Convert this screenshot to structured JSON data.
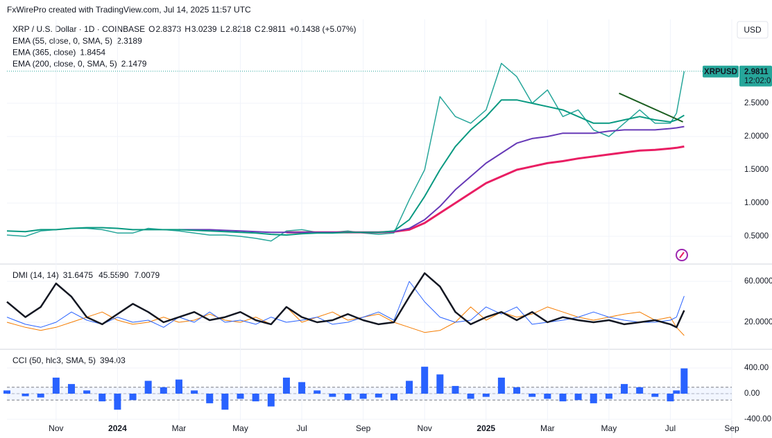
{
  "header": {
    "credit": "FxWirePro created with TradingView.com, Jul 14, 2025 11:57 UTC",
    "symbol": "XRP / U.S. Dollar · 1D · COINBASE",
    "ohlc": [
      {
        "key": "O",
        "value": "2.8373"
      },
      {
        "key": "H",
        "value": "3.0239"
      },
      {
        "key": "L",
        "value": "2.8218"
      },
      {
        "key": "C",
        "value": "2.9811"
      }
    ],
    "change": "+0.1438 (+5.07%)",
    "currency": "USD",
    "ticker": "XRPUSD",
    "last_price": "2.9811",
    "countdown": "12:02:0"
  },
  "chart_data": [
    {
      "type": "line",
      "studies": [
        {
          "label": "EMA (55, close, 0, SMA, 5)",
          "value": "2.3189",
          "color": "#089981"
        },
        {
          "label": "EMA (365, close)",
          "value": "1.8454",
          "color": "#e91e63"
        },
        {
          "label": "EMA (200, close, 0, SMA, 5)",
          "value": "2.1479",
          "color": "#673ab7"
        }
      ],
      "last": 2.9811,
      "x": [
        -1.6,
        -1,
        -0.5,
        0,
        0.5,
        1,
        1.5,
        2,
        2.5,
        3,
        3.5,
        4,
        4.5,
        5,
        5.5,
        6,
        6.5,
        7,
        7.5,
        8,
        8.5,
        9,
        9.5,
        10,
        10.5,
        11,
        11.5,
        12,
        12.5,
        13,
        13.5,
        14,
        14.5,
        15,
        15.5,
        16,
        16.5,
        17,
        17.5,
        18,
        18.5,
        19,
        19.5,
        20,
        20.2,
        20.45
      ],
      "xlim": [
        -1.6,
        22
      ],
      "xticks": [
        {
          "value": 0,
          "label": "Nov"
        },
        {
          "value": 2,
          "label": "2024"
        },
        {
          "value": 4,
          "label": "Mar"
        },
        {
          "value": 6,
          "label": "May"
        },
        {
          "value": 8,
          "label": "Jul"
        },
        {
          "value": 10,
          "label": "Sep"
        },
        {
          "value": 12,
          "label": "Nov"
        },
        {
          "value": 14,
          "label": "2025"
        },
        {
          "value": 16,
          "label": "Mar"
        },
        {
          "value": 18,
          "label": "May"
        },
        {
          "value": 20,
          "label": "Jul"
        },
        {
          "value": 22,
          "label": "Sep"
        }
      ],
      "ylim": [
        0.094,
        3.76
      ],
      "yticks": [
        {
          "value": 0.5,
          "label": "0.5000"
        },
        {
          "value": 1,
          "label": "1.0000"
        },
        {
          "value": 1.5,
          "label": "1.5000"
        },
        {
          "value": 2,
          "label": "2.0000"
        },
        {
          "value": 2.5,
          "label": "2.5000"
        }
      ],
      "series": [
        {
          "color": "#26a69a",
          "values": [
            0.52,
            0.5,
            0.58,
            0.6,
            0.62,
            0.62,
            0.6,
            0.55,
            0.55,
            0.62,
            0.6,
            0.58,
            0.55,
            0.52,
            0.52,
            0.5,
            0.47,
            0.43,
            0.58,
            0.6,
            0.56,
            0.56,
            0.58,
            0.55,
            0.53,
            0.55,
            1.05,
            1.5,
            2.6,
            2.3,
            2.2,
            2.4,
            3.1,
            2.9,
            2.5,
            2.7,
            2.3,
            2.4,
            2.1,
            2.0,
            2.2,
            2.4,
            2.2,
            2.2,
            2.35,
            2.98
          ]
        },
        {
          "color": "#e91e63",
          "width": 3,
          "values": [
            null,
            null,
            null,
            null,
            null,
            null,
            null,
            null,
            null,
            null,
            null,
            null,
            null,
            null,
            null,
            null,
            null,
            null,
            0.56,
            0.56,
            0.56,
            0.56,
            0.56,
            0.56,
            0.56,
            0.57,
            0.6,
            0.7,
            0.85,
            1.0,
            1.15,
            1.3,
            1.4,
            1.5,
            1.55,
            1.6,
            1.63,
            1.67,
            1.7,
            1.73,
            1.76,
            1.79,
            1.8,
            1.82,
            1.83,
            1.85
          ]
        },
        {
          "color": "#673ab7",
          "width": 2,
          "values": [
            null,
            null,
            null,
            null,
            null,
            null,
            null,
            null,
            null,
            null,
            null,
            0.6,
            0.6,
            0.6,
            0.59,
            0.58,
            0.57,
            0.56,
            0.56,
            0.56,
            0.56,
            0.56,
            0.56,
            0.56,
            0.56,
            0.57,
            0.62,
            0.75,
            0.95,
            1.2,
            1.4,
            1.6,
            1.75,
            1.9,
            1.97,
            2.0,
            2.05,
            2.05,
            2.05,
            2.08,
            2.1,
            2.1,
            2.1,
            2.12,
            2.13,
            2.15
          ]
        },
        {
          "color": "#089981",
          "width": 2,
          "values": [
            0.58,
            0.57,
            0.6,
            0.6,
            0.62,
            0.63,
            0.63,
            0.62,
            0.6,
            0.6,
            0.6,
            0.6,
            0.59,
            0.58,
            0.57,
            0.56,
            0.55,
            0.53,
            0.52,
            0.54,
            0.55,
            0.55,
            0.56,
            0.56,
            0.56,
            0.58,
            0.75,
            1.1,
            1.5,
            1.85,
            2.1,
            2.3,
            2.55,
            2.55,
            2.5,
            2.45,
            2.4,
            2.3,
            2.2,
            2.2,
            2.25,
            2.3,
            2.25,
            2.22,
            2.25,
            2.32
          ]
        }
      ],
      "trendline": {
        "x": [
          18.33,
          20.41
        ],
        "y": [
          2.65,
          2.22
        ],
        "color": "#1b5e20"
      }
    },
    {
      "type": "line",
      "title": "DMI (14, 14)",
      "readouts": [
        {
          "value": "31.6475",
          "color": "#131722"
        },
        {
          "value": "45.5590",
          "color": "#2962ff"
        },
        {
          "value": "7.0079",
          "color": "#f57c00"
        }
      ],
      "ylim": [
        -5.8,
        76.3
      ],
      "yticks": [
        {
          "value": 20,
          "label": "20.0000"
        },
        {
          "value": 60,
          "label": "60.0000"
        }
      ],
      "series": [
        {
          "color": "#f57c00",
          "width": 1,
          "values": [
            20,
            15,
            12,
            15,
            20,
            25,
            30,
            22,
            18,
            20,
            25,
            20,
            22,
            28,
            22,
            20,
            25,
            18,
            35,
            20,
            25,
            30,
            22,
            25,
            28,
            20,
            15,
            10,
            12,
            20,
            35,
            22,
            30,
            25,
            28,
            35,
            30,
            25,
            22,
            25,
            28,
            30,
            22,
            25,
            15,
            7.0
          ]
        },
        {
          "color": "#2962ff",
          "width": 1,
          "values": [
            25,
            18,
            15,
            20,
            30,
            22,
            18,
            25,
            20,
            22,
            15,
            25,
            20,
            30,
            20,
            22,
            18,
            25,
            20,
            22,
            25,
            18,
            20,
            25,
            30,
            22,
            60,
            40,
            25,
            20,
            22,
            35,
            28,
            35,
            18,
            20,
            22,
            25,
            30,
            25,
            22,
            20,
            20,
            22,
            25,
            45.6
          ]
        },
        {
          "color": "#131722",
          "width": 2.5,
          "values": [
            40,
            25,
            35,
            58,
            45,
            25,
            18,
            28,
            38,
            30,
            20,
            25,
            30,
            22,
            25,
            30,
            22,
            18,
            35,
            25,
            20,
            22,
            28,
            22,
            18,
            20,
            45,
            68,
            55,
            30,
            18,
            25,
            30,
            22,
            30,
            20,
            25,
            22,
            20,
            22,
            18,
            20,
            22,
            18,
            15,
            31.6
          ]
        }
      ]
    },
    {
      "type": "bar",
      "title": "CCI (50, hlc3, SMA, 5)",
      "readouts": [
        {
          "value": "394.03",
          "color": "#2962ff"
        }
      ],
      "color": "#2962ff",
      "band": [
        -100,
        100
      ],
      "ylim": [
        -670,
        681
      ],
      "yticks": [
        {
          "value": -400,
          "label": "-400.00"
        },
        {
          "value": 0,
          "label": "0.00"
        },
        {
          "value": 400,
          "label": "400.00"
        }
      ],
      "values": [
        50,
        -40,
        -60,
        250,
        150,
        50,
        -120,
        -250,
        -100,
        200,
        100,
        220,
        50,
        -150,
        -250,
        -80,
        -120,
        -200,
        250,
        180,
        50,
        -50,
        -100,
        -80,
        -60,
        -100,
        200,
        420,
        300,
        120,
        -80,
        -50,
        250,
        100,
        -50,
        -80,
        -120,
        -100,
        -150,
        -80,
        150,
        100,
        -50,
        -120,
        50,
        394.03
      ]
    }
  ]
}
